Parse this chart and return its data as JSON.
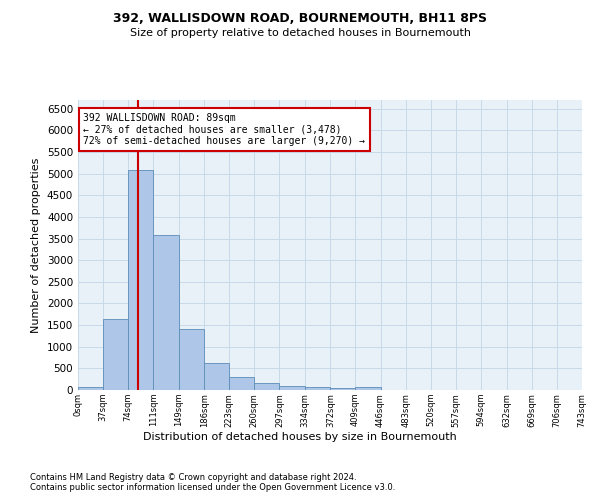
{
  "title1": "392, WALLISDOWN ROAD, BOURNEMOUTH, BH11 8PS",
  "title2": "Size of property relative to detached houses in Bournemouth",
  "xlabel": "Distribution of detached houses by size in Bournemouth",
  "ylabel": "Number of detached properties",
  "footnote1": "Contains HM Land Registry data © Crown copyright and database right 2024.",
  "footnote2": "Contains public sector information licensed under the Open Government Licence v3.0.",
  "bar_edges": [
    0,
    37,
    74,
    111,
    149,
    186,
    223,
    260,
    297,
    334,
    372,
    409,
    446,
    483,
    520,
    557,
    594,
    632,
    669,
    706,
    743
  ],
  "bar_heights": [
    75,
    1640,
    5080,
    3580,
    1410,
    620,
    305,
    155,
    100,
    60,
    55,
    60,
    0,
    0,
    0,
    0,
    0,
    0,
    0,
    0
  ],
  "bar_color": "#aec6e8",
  "bar_edge_color": "#5b8db8",
  "vline_x": 89,
  "vline_color": "#cc0000",
  "annotation_text": "392 WALLISDOWN ROAD: 89sqm\n← 27% of detached houses are smaller (3,478)\n72% of semi-detached houses are larger (9,270) →",
  "annotation_box_color": "#cc0000",
  "ylim": [
    0,
    6700
  ],
  "yticks": [
    0,
    500,
    1000,
    1500,
    2000,
    2500,
    3000,
    3500,
    4000,
    4500,
    5000,
    5500,
    6000,
    6500
  ],
  "tick_labels": [
    "0sqm",
    "37sqm",
    "74sqm",
    "111sqm",
    "149sqm",
    "186sqm",
    "223sqm",
    "260sqm",
    "297sqm",
    "334sqm",
    "372sqm",
    "409sqm",
    "446sqm",
    "483sqm",
    "520sqm",
    "557sqm",
    "594sqm",
    "632sqm",
    "669sqm",
    "706sqm",
    "743sqm"
  ],
  "grid_color": "#c8daea",
  "bg_color": "#e8f0f8"
}
